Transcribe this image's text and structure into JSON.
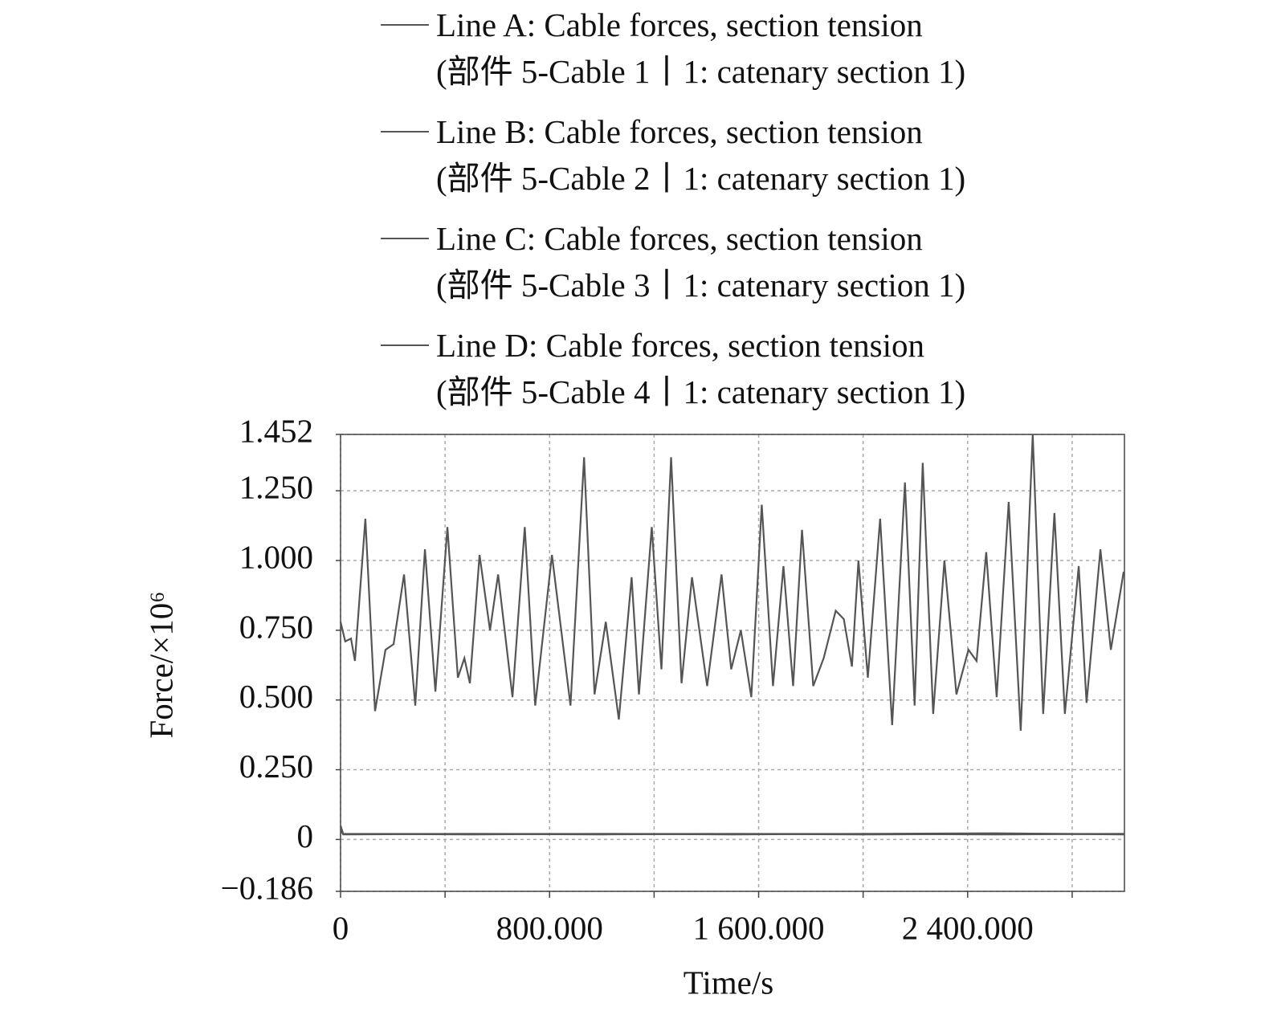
{
  "chart_data": {
    "type": "line",
    "xlabel": "Time/s",
    "ylabel": "Force/×10⁶",
    "xlim": [
      0,
      3000
    ],
    "ylim": [
      -0.186,
      1.452
    ],
    "xticks": [
      0,
      {
        "value": 800,
        "label": "800.000"
      },
      {
        "value": 1600,
        "label": "1 600.000"
      },
      {
        "value": 2400,
        "label": "2 400.000"
      }
    ],
    "xminorticks": [
      400,
      1200,
      2000,
      2800
    ],
    "yticks": [
      {
        "value": -0.186,
        "label": "−0.186"
      },
      0,
      {
        "value": 0.25,
        "label": "0.250"
      },
      {
        "value": 0.5,
        "label": "0.500"
      },
      {
        "value": 0.75,
        "label": "0.750"
      },
      {
        "value": 1,
        "label": "1.000"
      },
      {
        "value": 1.25,
        "label": "1.250"
      },
      1.452
    ],
    "grid": true,
    "legend": "top",
    "series": [
      {
        "name": "Line A: Cable forces, section tension\n(部件 5-Cable 1丨1: catenary section 1)",
        "color": "#555555",
        "x": [
          0,
          18,
          40,
          55,
          95,
          132,
          172,
          203,
          243,
          286,
          323,
          363,
          409,
          449,
          474,
          495,
          532,
          572,
          603,
          658,
          705,
          745,
          809,
          880,
          932,
          972,
          1015,
          1065,
          1114,
          1142,
          1191,
          1228,
          1265,
          1305,
          1345,
          1403,
          1458,
          1495,
          1532,
          1572,
          1612,
          1655,
          1695,
          1732,
          1766,
          1809,
          1849,
          1895,
          1926,
          1957,
          1982,
          2018,
          2065,
          2111,
          2160,
          2197,
          2228,
          2268,
          2311,
          2357,
          2403,
          2434,
          2471,
          2511,
          2557,
          2603,
          2649,
          2689,
          2732,
          2772,
          2825,
          2855,
          2908,
          2948,
          2997
        ],
        "values": [
          0.78,
          0.71,
          0.72,
          0.64,
          1.15,
          0.46,
          0.68,
          0.7,
          0.95,
          0.48,
          1.04,
          0.53,
          1.12,
          0.58,
          0.65,
          0.56,
          1.02,
          0.75,
          0.95,
          0.51,
          1.12,
          0.48,
          1.02,
          0.48,
          1.37,
          0.52,
          0.78,
          0.43,
          0.94,
          0.52,
          1.12,
          0.61,
          1.37,
          0.56,
          0.94,
          0.55,
          0.95,
          0.61,
          0.75,
          0.51,
          1.2,
          0.55,
          0.98,
          0.55,
          1.11,
          0.55,
          0.65,
          0.82,
          0.79,
          0.62,
          1.0,
          0.58,
          1.15,
          0.41,
          1.28,
          0.48,
          1.35,
          0.45,
          1.0,
          0.52,
          0.68,
          0.64,
          1.03,
          0.51,
          1.21,
          0.39,
          1.452,
          0.45,
          1.17,
          0.45,
          0.98,
          0.49,
          1.04,
          0.68,
          0.96
        ]
      },
      {
        "name": "Line B: Cable forces, section tension\n(部件 5-Cable 2丨1: catenary section 1)",
        "color": "#555555",
        "x": [
          0,
          10,
          500,
          1000,
          1500,
          2000,
          2500,
          3000
        ],
        "values": [
          0.05,
          0.02,
          0.02,
          0.018,
          0.02,
          0.018,
          0.02,
          0.02
        ]
      },
      {
        "name": "Line C: Cable forces, section tension\n(部件 5-Cable 3丨1: catenary section 1)",
        "color": "#555555",
        "x": [
          0,
          10,
          500,
          1000,
          1500,
          2000,
          2500,
          3000
        ],
        "values": [
          0.04,
          0.018,
          0.02,
          0.02,
          0.018,
          0.02,
          0.022,
          0.018
        ]
      },
      {
        "name": "Line D: Cable forces, section tension\n(部件 5-Cable 4丨1: catenary section 1)",
        "color": "#555555",
        "x": [
          0,
          10,
          500,
          1000,
          1500,
          2000,
          2500,
          3000
        ],
        "values": [
          0.03,
          0.02,
          0.018,
          0.02,
          0.02,
          0.02,
          0.018,
          0.02
        ]
      }
    ]
  }
}
